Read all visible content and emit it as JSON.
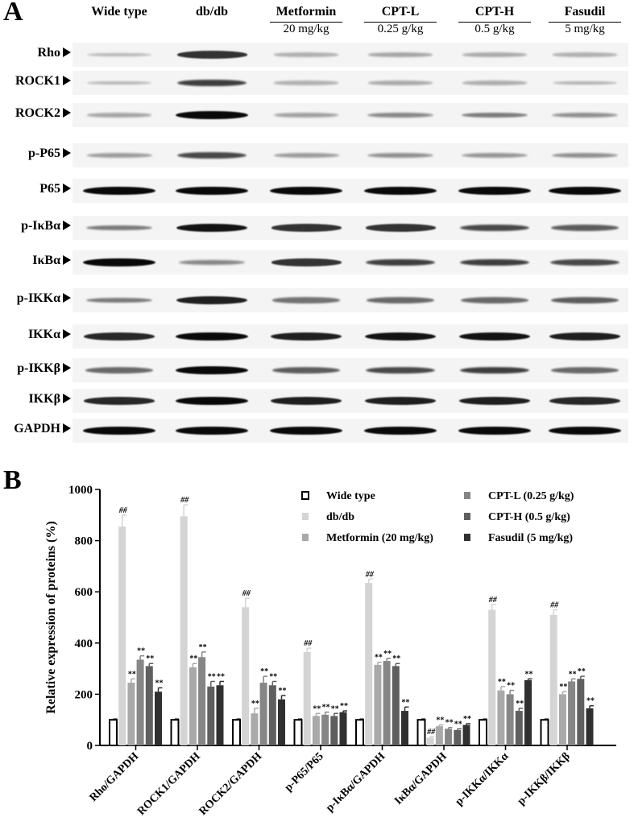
{
  "panel_a": {
    "letter": "A",
    "groups": [
      {
        "name": "Wide type",
        "dose": ""
      },
      {
        "name": "db/db",
        "dose": ""
      },
      {
        "name": "Metformin",
        "dose": "20 mg/kg"
      },
      {
        "name": "CPT-L",
        "dose": "0.25 g/kg"
      },
      {
        "name": "CPT-H",
        "dose": "0.5 g/kg"
      },
      {
        "name": "Fasudil",
        "dose": "5 mg/kg"
      }
    ],
    "rows": [
      {
        "label": "Rho",
        "intensity": [
          0.12,
          0.75,
          0.15,
          0.2,
          0.18,
          0.15
        ]
      },
      {
        "label": "ROCK1",
        "intensity": [
          0.12,
          0.7,
          0.15,
          0.18,
          0.16,
          0.14
        ]
      },
      {
        "label": "ROCK2",
        "intensity": [
          0.2,
          0.95,
          0.22,
          0.35,
          0.4,
          0.3
        ]
      },
      {
        "label": "p-P65",
        "intensity": [
          0.25,
          0.65,
          0.25,
          0.3,
          0.28,
          0.3
        ]
      },
      {
        "label": "P65",
        "intensity": [
          0.95,
          0.95,
          0.95,
          0.95,
          0.95,
          0.95
        ]
      },
      {
        "label": "p-IκBα",
        "intensity": [
          0.4,
          0.9,
          0.75,
          0.75,
          0.65,
          0.55
        ]
      },
      {
        "label": "IκBα",
        "intensity": [
          0.95,
          0.35,
          0.75,
          0.7,
          0.7,
          0.65
        ]
      },
      {
        "label": "p-IKKα",
        "intensity": [
          0.4,
          0.85,
          0.45,
          0.5,
          0.5,
          0.55
        ]
      },
      {
        "label": "IKKα",
        "intensity": [
          0.8,
          0.95,
          0.85,
          0.9,
          0.9,
          0.85
        ]
      },
      {
        "label": "p-IKKβ",
        "intensity": [
          0.5,
          0.95,
          0.55,
          0.65,
          0.7,
          0.5
        ]
      },
      {
        "label": "IKKβ",
        "intensity": [
          0.8,
          0.95,
          0.85,
          0.85,
          0.85,
          0.8
        ]
      },
      {
        "label": "GAPDH",
        "intensity": [
          0.95,
          0.95,
          0.95,
          0.95,
          0.95,
          0.95
        ]
      }
    ]
  },
  "chart_data": {
    "type": "bar",
    "panel_letter": "B",
    "ylabel": "Relative expression of proteins (%)",
    "ylim": [
      0,
      1000
    ],
    "yticks": [
      "0",
      "200",
      "400",
      "600",
      "800",
      "1000"
    ],
    "categories": [
      "Rho/GAPDH",
      "ROCK1/GAPDH",
      "ROCK2/GAPDH",
      "p-P65/P65",
      "p-IκBα/GAPDH",
      "IκBα/GAPDH",
      "p-IKKα/IKKα",
      "p-IKKβ/IKKβ"
    ],
    "series": [
      {
        "name": "Wide type",
        "color": "#ffffff",
        "values": [
          100,
          100,
          100,
          100,
          100,
          100,
          100,
          100
        ],
        "err": [
          3,
          3,
          3,
          3,
          3,
          3,
          3,
          3
        ],
        "marks": [
          "",
          "",
          "",
          "",
          "",
          "",
          "",
          ""
        ]
      },
      {
        "name": "db/db",
        "color": "#d4d4d4",
        "values": [
          855,
          895,
          540,
          365,
          635,
          30,
          530,
          510
        ],
        "err": [
          45,
          45,
          35,
          15,
          15,
          5,
          20,
          20
        ],
        "marks": [
          "##",
          "##",
          "##",
          "##",
          "##",
          "##",
          "##",
          "##"
        ]
      },
      {
        "name": "Metformin (20 mg/kg)",
        "color": "#a9a9a9",
        "values": [
          245,
          305,
          125,
          115,
          315,
          75,
          215,
          200
        ],
        "err": [
          15,
          15,
          20,
          10,
          10,
          5,
          15,
          10
        ],
        "marks": [
          "**",
          "**",
          "**",
          "**",
          "**",
          "**",
          "**",
          "**"
        ]
      },
      {
        "name": "CPT-L (0.25 g/kg)",
        "color": "#868686",
        "values": [
          335,
          345,
          245,
          120,
          330,
          65,
          200,
          250
        ],
        "err": [
          15,
          20,
          25,
          10,
          10,
          5,
          15,
          10
        ],
        "marks": [
          "**",
          "**",
          "**",
          "**",
          "**",
          "**",
          "**",
          "**"
        ]
      },
      {
        "name": "CPT-H (0.5 g/kg)",
        "color": "#5f5f5f",
        "values": [
          310,
          230,
          235,
          115,
          310,
          60,
          135,
          260
        ],
        "err": [
          10,
          20,
          15,
          10,
          10,
          5,
          10,
          10
        ],
        "marks": [
          "**",
          "**",
          "**",
          "**",
          "**",
          "**",
          "**",
          "**"
        ]
      },
      {
        "name": "Fasudil (5 mg/kg)",
        "color": "#303030",
        "values": [
          210,
          235,
          180,
          130,
          135,
          80,
          255,
          145
        ],
        "err": [
          15,
          15,
          15,
          5,
          15,
          5,
          5,
          10
        ],
        "marks": [
          "**",
          "**",
          "**",
          "**",
          "**",
          "**",
          "**",
          "**"
        ]
      }
    ],
    "legend_position": "top-right"
  }
}
